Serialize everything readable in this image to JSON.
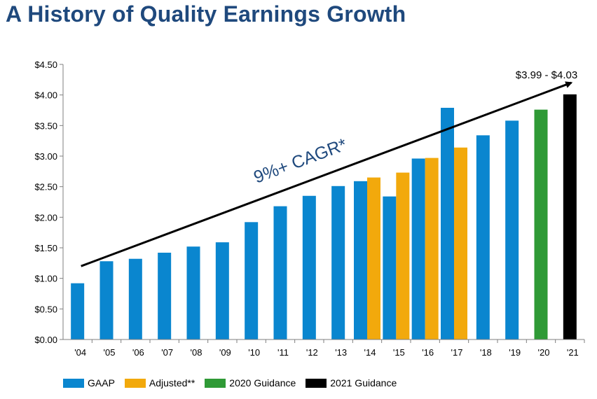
{
  "page": {
    "title": "A History of Quality Earnings Growth"
  },
  "chart_data": {
    "type": "bar",
    "title": "A History of Quality Earnings Growth",
    "xlabel": "",
    "ylabel": "",
    "ylim": [
      0,
      4.5
    ],
    "y_ticks": [
      "$0.00",
      "$0.50",
      "$1.00",
      "$1.50",
      "$2.00",
      "$2.50",
      "$3.00",
      "$3.50",
      "$4.00",
      "$4.50"
    ],
    "categories": [
      "'04",
      "'05",
      "'06",
      "'07",
      "'08",
      "'09",
      "'10",
      "'11",
      "'12",
      "'13",
      "'14",
      "'15",
      "'16",
      "'17",
      "'18",
      "'19",
      "'20",
      "'21"
    ],
    "series": [
      {
        "name": "GAAP",
        "color": "#0a86cf",
        "values": [
          0.92,
          1.28,
          1.32,
          1.42,
          1.52,
          1.59,
          1.92,
          2.18,
          2.35,
          2.51,
          2.59,
          2.34,
          2.96,
          3.79,
          3.34,
          3.58,
          null,
          null
        ]
      },
      {
        "name": "Adjusted**",
        "color": "#f2a90c",
        "values": [
          null,
          null,
          null,
          null,
          null,
          null,
          null,
          null,
          null,
          null,
          2.65,
          2.73,
          2.97,
          3.14,
          null,
          null,
          null,
          null
        ]
      },
      {
        "name": "2020 Guidance",
        "color": "#2f9a36",
        "values": [
          null,
          null,
          null,
          null,
          null,
          null,
          null,
          null,
          null,
          null,
          null,
          null,
          null,
          null,
          null,
          null,
          3.76,
          null
        ]
      },
      {
        "name": "2021 Guidance",
        "color": "#000000",
        "values": [
          null,
          null,
          null,
          null,
          null,
          null,
          null,
          null,
          null,
          null,
          null,
          null,
          null,
          null,
          null,
          null,
          null,
          4.01
        ]
      }
    ],
    "annotations": {
      "range_label": "$3.99 - $4.03",
      "trend_label": "9%+ CAGR*"
    },
    "grid": false,
    "legend_position": "bottom"
  }
}
